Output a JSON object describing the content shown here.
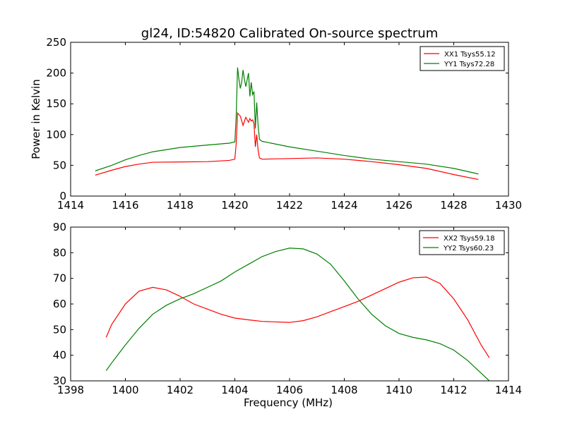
{
  "figure": {
    "title": "gl24, ID:54820 Calibrated On-source spectrum"
  },
  "chart_data": [
    {
      "type": "line",
      "title": "gl24, ID:54820 Calibrated On-source spectrum",
      "xlabel": "",
      "ylabel": "Power in Kelvin",
      "xlim": [
        1414,
        1430
      ],
      "ylim": [
        0,
        250
      ],
      "xticks": [
        1414,
        1416,
        1418,
        1420,
        1422,
        1424,
        1426,
        1428,
        1430
      ],
      "yticks": [
        0,
        50,
        100,
        150,
        200,
        250
      ],
      "grid": false,
      "legend_position": "top-right",
      "series": [
        {
          "name": "XX1 Tsys55.12",
          "color": "#ff0000",
          "x": [
            1414.9,
            1415.5,
            1416.0,
            1416.5,
            1417.0,
            1418.0,
            1419.0,
            1419.8,
            1420.0,
            1420.05,
            1420.1,
            1420.2,
            1420.3,
            1420.4,
            1420.5,
            1420.55,
            1420.6,
            1420.65,
            1420.7,
            1420.75,
            1420.8,
            1420.85,
            1420.9,
            1421.0,
            1422.0,
            1423.0,
            1424.0,
            1425.0,
            1426.0,
            1427.0,
            1428.0,
            1428.9
          ],
          "y": [
            34,
            42,
            48,
            52,
            55,
            55.5,
            56,
            58,
            60,
            85,
            135,
            130,
            115,
            128,
            120,
            126,
            122,
            124,
            118,
            80,
            100,
            75,
            62,
            60,
            61,
            62,
            60,
            56,
            51,
            45,
            35,
            27
          ]
        },
        {
          "name": "YY1 Tsys72.28",
          "color": "#008000",
          "x": [
            1414.9,
            1415.5,
            1416.0,
            1416.5,
            1417.0,
            1418.0,
            1419.0,
            1419.8,
            1420.0,
            1420.05,
            1420.1,
            1420.15,
            1420.2,
            1420.25,
            1420.3,
            1420.35,
            1420.4,
            1420.5,
            1420.55,
            1420.6,
            1420.65,
            1420.7,
            1420.75,
            1420.8,
            1420.85,
            1420.9,
            1421.0,
            1422.0,
            1423.0,
            1424.0,
            1425.0,
            1426.0,
            1427.0,
            1428.0,
            1428.9
          ],
          "y": [
            41,
            50,
            59,
            66,
            72,
            79,
            83,
            86,
            88,
            130,
            209,
            190,
            175,
            185,
            205,
            190,
            178,
            200,
            162,
            185,
            165,
            170,
            110,
            152,
            115,
            92,
            89,
            80,
            73,
            66,
            60,
            56,
            52,
            45,
            36
          ]
        }
      ]
    },
    {
      "type": "line",
      "title": "",
      "xlabel": "Frequency (MHz)",
      "ylabel": "",
      "xlim": [
        1398,
        1414
      ],
      "ylim": [
        30,
        90
      ],
      "xticks": [
        1398,
        1400,
        1402,
        1404,
        1406,
        1408,
        1410,
        1412,
        1414
      ],
      "yticks": [
        30,
        40,
        50,
        60,
        70,
        80,
        90
      ],
      "grid": false,
      "legend_position": "top-right",
      "series": [
        {
          "name": "XX2 Tsys59.18",
          "color": "#ff0000",
          "x": [
            1399.3,
            1399.5,
            1400.0,
            1400.5,
            1401.0,
            1401.5,
            1402.0,
            1402.5,
            1403.0,
            1403.5,
            1404.0,
            1404.5,
            1405.0,
            1405.5,
            1406.0,
            1406.5,
            1407.0,
            1407.5,
            1408.0,
            1408.5,
            1409.0,
            1409.5,
            1410.0,
            1410.5,
            1411.0,
            1411.5,
            1412.0,
            1412.5,
            1413.0,
            1413.3
          ],
          "y": [
            47,
            52,
            60,
            65,
            66.5,
            65.5,
            63,
            60,
            58,
            56,
            54.5,
            53.8,
            53.2,
            53,
            52.8,
            53.5,
            55,
            57,
            59,
            61,
            63.5,
            66,
            68.5,
            70.2,
            70.5,
            68,
            62,
            54,
            44,
            39
          ]
        },
        {
          "name": "YY2 Tsys60.23",
          "color": "#008000",
          "x": [
            1399.3,
            1399.5,
            1400.0,
            1400.5,
            1401.0,
            1401.5,
            1402.0,
            1402.5,
            1403.0,
            1403.5,
            1404.0,
            1404.5,
            1405.0,
            1405.5,
            1406.0,
            1406.5,
            1407.0,
            1407.5,
            1408.0,
            1408.5,
            1409.0,
            1409.5,
            1410.0,
            1410.5,
            1411.0,
            1411.5,
            1412.0,
            1412.5,
            1413.0,
            1413.3
          ],
          "y": [
            34,
            37,
            44,
            50.5,
            56,
            59.5,
            62,
            64,
            66.5,
            69,
            72.5,
            75.5,
            78.5,
            80.5,
            81.8,
            81.5,
            79.5,
            75.5,
            69,
            62,
            56,
            51.5,
            48.5,
            47,
            46,
            44.5,
            42,
            38,
            33,
            30
          ]
        }
      ]
    }
  ]
}
